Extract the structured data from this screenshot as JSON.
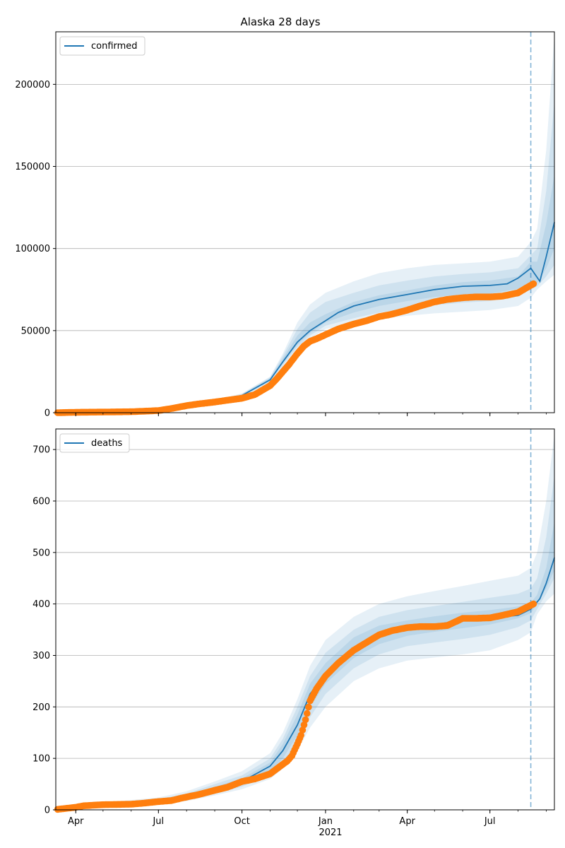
{
  "chart_data": [
    {
      "type": "line",
      "title": "Alaska 28 days",
      "legend": {
        "entries": [
          "confirmed"
        ],
        "placement": "top-left"
      },
      "ylim": [
        0,
        232000
      ],
      "yticks": [
        0,
        50000,
        100000,
        150000,
        200000
      ],
      "ytick_labels": [
        "0",
        "50000",
        "100000",
        "150000",
        "200000"
      ],
      "grid": "horizontal",
      "forecast_start": "2021-08-15",
      "colors": {
        "model": "#1f77b4",
        "observed": "#ff7f0e",
        "band": "#1f77b4"
      },
      "model_series": {
        "name": "confirmed",
        "x": [
          "2020-03-10",
          "2020-06-01",
          "2020-07-01",
          "2020-08-01",
          "2020-09-01",
          "2020-10-01",
          "2020-11-01",
          "2020-11-15",
          "2020-12-01",
          "2020-12-15",
          "2021-01-01",
          "2021-01-15",
          "2021-02-01",
          "2021-03-01",
          "2021-04-01",
          "2021-05-01",
          "2021-06-01",
          "2021-07-01",
          "2021-07-20",
          "2021-08-01",
          "2021-08-15",
          "2021-08-25",
          "2021-09-01",
          "2021-09-10"
        ],
        "y": [
          200,
          700,
          1700,
          4500,
          7000,
          10500,
          20000,
          31000,
          43000,
          50000,
          56000,
          61000,
          65000,
          69000,
          72000,
          75000,
          77000,
          77500,
          78500,
          82000,
          88000,
          80000,
          95000,
          116000
        ]
      },
      "bands": [
        {
          "x": [
            "2020-03-10",
            "2020-07-01",
            "2020-08-01",
            "2020-09-01",
            "2020-10-01",
            "2020-11-01",
            "2020-11-15",
            "2020-12-01",
            "2020-12-15",
            "2021-01-01",
            "2021-02-01",
            "2021-03-01",
            "2021-04-01",
            "2021-05-01",
            "2021-06-01",
            "2021-07-01",
            "2021-08-01",
            "2021-08-15",
            "2021-08-22",
            "2021-09-01",
            "2021-09-10"
          ],
          "lower": [
            150,
            1400,
            4000,
            6300,
            9300,
            18500,
            28000,
            38000,
            45000,
            51000,
            54000,
            57000,
            59000,
            60500,
            61500,
            62500,
            65000,
            70000,
            75000,
            80000,
            84000
          ],
          "upper": [
            250,
            2000,
            5000,
            7700,
            11700,
            22000,
            36000,
            55000,
            66000,
            73000,
            80000,
            85000,
            88000,
            90000,
            91000,
            92000,
            95000,
            104000,
            112000,
            160000,
            230000
          ]
        },
        {
          "x": [
            "2020-03-10",
            "2020-07-01",
            "2020-08-01",
            "2020-09-01",
            "2020-10-01",
            "2020-11-01",
            "2020-11-15",
            "2020-12-01",
            "2020-12-15",
            "2021-01-01",
            "2021-02-01",
            "2021-03-01",
            "2021-04-01",
            "2021-05-01",
            "2021-06-01",
            "2021-07-01",
            "2021-08-01",
            "2021-08-15",
            "2021-08-22",
            "2021-09-01",
            "2021-09-10"
          ],
          "lower": [
            170,
            1500,
            4200,
            6500,
            9600,
            19000,
            29000,
            40000,
            47000,
            53000,
            57500,
            61000,
            63500,
            65500,
            67000,
            68000,
            71000,
            75000,
            77000,
            83000,
            90000
          ],
          "upper": [
            230,
            1900,
            4800,
            7500,
            11400,
            21500,
            34500,
            51000,
            61000,
            67500,
            73000,
            77500,
            80500,
            83000,
            84500,
            85500,
            88000,
            96000,
            100000,
            135000,
            190000
          ]
        },
        {
          "x": [
            "2020-03-10",
            "2020-07-01",
            "2020-08-01",
            "2020-09-01",
            "2020-10-01",
            "2020-11-01",
            "2020-11-15",
            "2020-12-01",
            "2020-12-15",
            "2021-01-01",
            "2021-02-01",
            "2021-03-01",
            "2021-04-01",
            "2021-05-01",
            "2021-06-01",
            "2021-07-01",
            "2021-08-01",
            "2021-08-15",
            "2021-08-22",
            "2021-09-01",
            "2021-09-10"
          ],
          "lower": [
            185,
            1600,
            4350,
            6750,
            10000,
            19500,
            30000,
            41500,
            48500,
            55000,
            61000,
            65000,
            68000,
            70500,
            72000,
            72500,
            75500,
            80000,
            79000,
            88000,
            100000
          ],
          "upper": [
            215,
            1800,
            4650,
            7250,
            11000,
            21000,
            33000,
            47000,
            55000,
            60000,
            67500,
            71500,
            74500,
            77500,
            79500,
            80500,
            83000,
            92000,
            92000,
            115000,
            145000
          ]
        }
      ],
      "observed": {
        "x": [
          "2020-03-12",
          "2020-04-01",
          "2020-05-01",
          "2020-06-01",
          "2020-06-15",
          "2020-07-01",
          "2020-07-15",
          "2020-08-01",
          "2020-08-15",
          "2020-09-01",
          "2020-09-15",
          "2020-10-01",
          "2020-10-15",
          "2020-11-01",
          "2020-11-08",
          "2020-11-15",
          "2020-11-22",
          "2020-12-01",
          "2020-12-08",
          "2020-12-15",
          "2020-12-22",
          "2021-01-01",
          "2021-01-15",
          "2021-02-01",
          "2021-02-15",
          "2021-03-01",
          "2021-03-15",
          "2021-04-01",
          "2021-04-15",
          "2021-05-01",
          "2021-05-15",
          "2021-06-01",
          "2021-06-15",
          "2021-07-01",
          "2021-07-15",
          "2021-08-01",
          "2021-08-10",
          "2021-08-18"
        ],
        "y": [
          0,
          250,
          400,
          600,
          900,
          1300,
          2500,
          4300,
          5400,
          6500,
          7600,
          8800,
          11000,
          16500,
          20500,
          25000,
          29500,
          36000,
          40500,
          43500,
          45000,
          47500,
          51000,
          54000,
          56000,
          58500,
          60000,
          62500,
          65000,
          67500,
          69000,
          70000,
          70500,
          70500,
          71000,
          73000,
          76000,
          78500
        ]
      }
    },
    {
      "type": "line",
      "title": "",
      "legend": {
        "entries": [
          "deaths"
        ],
        "placement": "top-left"
      },
      "ylim": [
        0,
        740
      ],
      "yticks": [
        0,
        100,
        200,
        300,
        400,
        500,
        600,
        700
      ],
      "ytick_labels": [
        "0",
        "100",
        "200",
        "300",
        "400",
        "500",
        "600",
        "700"
      ],
      "grid": "horizontal",
      "forecast_start": "2021-08-15",
      "xticks": [
        "2020-04-01",
        "2020-07-01",
        "2020-10-01",
        "2021-01-01",
        "2021-04-01",
        "2021-07-01"
      ],
      "xtick_labels": [
        "Apr",
        "Jul",
        "Oct",
        "Jan",
        "Apr",
        "Jul"
      ],
      "xtick_year_label": "2021",
      "xlim": [
        "2020-03-10",
        "2021-09-10"
      ],
      "colors": {
        "model": "#1f77b4",
        "observed": "#ff7f0e",
        "band": "#1f77b4"
      },
      "model_series": {
        "name": "deaths",
        "x": [
          "2020-03-10",
          "2020-04-01",
          "2020-05-01",
          "2020-06-01",
          "2020-07-01",
          "2020-08-01",
          "2020-09-01",
          "2020-10-01",
          "2020-11-01",
          "2020-11-15",
          "2020-12-01",
          "2020-12-15",
          "2021-01-01",
          "2021-01-15",
          "2021-02-01",
          "2021-03-01",
          "2021-04-01",
          "2021-05-01",
          "2021-06-01",
          "2021-07-01",
          "2021-08-01",
          "2021-08-15",
          "2021-08-25",
          "2021-09-01",
          "2021-09-10"
        ],
        "y": [
          2,
          6,
          9,
          12,
          16,
          25,
          40,
          55,
          85,
          115,
          165,
          225,
          265,
          290,
          315,
          340,
          352,
          360,
          368,
          373,
          378,
          390,
          410,
          440,
          490
        ]
      },
      "bands": [
        {
          "x": [
            "2020-03-10",
            "2020-05-01",
            "2020-07-01",
            "2020-08-01",
            "2020-09-01",
            "2020-10-01",
            "2020-11-01",
            "2020-11-15",
            "2020-12-01",
            "2020-12-15",
            "2021-01-01",
            "2021-02-01",
            "2021-03-01",
            "2021-04-01",
            "2021-05-01",
            "2021-06-01",
            "2021-07-01",
            "2021-08-01",
            "2021-08-15",
            "2021-08-22",
            "2021-09-01",
            "2021-09-10"
          ],
          "lower": [
            0,
            5,
            10,
            17,
            28,
            40,
            60,
            80,
            115,
            160,
            200,
            250,
            275,
            290,
            296,
            302,
            310,
            330,
            345,
            380,
            405,
            420
          ],
          "upper": [
            5,
            14,
            24,
            36,
            55,
            75,
            110,
            150,
            215,
            280,
            330,
            375,
            400,
            415,
            425,
            435,
            445,
            455,
            470,
            500,
            600,
            730
          ]
        },
        {
          "x": [
            "2020-03-10",
            "2020-05-01",
            "2020-07-01",
            "2020-08-01",
            "2020-09-01",
            "2020-10-01",
            "2020-11-01",
            "2020-11-15",
            "2020-12-01",
            "2020-12-15",
            "2021-01-01",
            "2021-02-01",
            "2021-03-01",
            "2021-04-01",
            "2021-05-01",
            "2021-06-01",
            "2021-07-01",
            "2021-08-01",
            "2021-08-15",
            "2021-08-22",
            "2021-09-01",
            "2021-09-10"
          ],
          "lower": [
            1,
            6,
            12,
            19,
            31,
            45,
            67,
            90,
            130,
            180,
            225,
            275,
            302,
            318,
            325,
            332,
            340,
            355,
            368,
            390,
            420,
            450
          ],
          "upper": [
            4,
            12,
            21,
            32,
            50,
            67,
            100,
            138,
            200,
            260,
            305,
            350,
            375,
            388,
            396,
            404,
            412,
            420,
            430,
            450,
            530,
            650
          ]
        },
        {
          "x": [
            "2020-03-10",
            "2020-05-01",
            "2020-07-01",
            "2020-08-01",
            "2020-09-01",
            "2020-10-01",
            "2020-11-01",
            "2020-11-15",
            "2020-12-01",
            "2020-12-15",
            "2021-01-01",
            "2021-02-01",
            "2021-03-01",
            "2021-04-01",
            "2021-05-01",
            "2021-06-01",
            "2021-07-01",
            "2021-08-01",
            "2021-08-15",
            "2021-08-22",
            "2021-09-01",
            "2021-09-10"
          ],
          "lower": [
            1,
            7,
            14,
            21,
            35,
            50,
            75,
            100,
            145,
            200,
            245,
            295,
            322,
            338,
            346,
            353,
            360,
            372,
            382,
            400,
            430,
            465
          ],
          "upper": [
            3,
            11,
            19,
            29,
            45,
            61,
            92,
            128,
            185,
            245,
            285,
            335,
            358,
            368,
            376,
            383,
            388,
            395,
            402,
            418,
            470,
            560
          ]
        }
      ],
      "observed": {
        "x": [
          "2020-03-12",
          "2020-04-01",
          "2020-04-10",
          "2020-05-01",
          "2020-06-01",
          "2020-06-15",
          "2020-07-01",
          "2020-07-15",
          "2020-08-01",
          "2020-08-15",
          "2020-09-01",
          "2020-09-15",
          "2020-10-01",
          "2020-10-15",
          "2020-11-01",
          "2020-11-10",
          "2020-11-20",
          "2020-11-25",
          "2020-12-01",
          "2020-12-05",
          "2020-12-10",
          "2020-12-15",
          "2020-12-22",
          "2021-01-01",
          "2021-01-15",
          "2021-02-01",
          "2021-02-15",
          "2021-03-01",
          "2021-03-15",
          "2021-04-01",
          "2021-04-15",
          "2021-05-01",
          "2021-05-15",
          "2021-06-01",
          "2021-06-15",
          "2021-07-01",
          "2021-07-15",
          "2021-08-01",
          "2021-08-10",
          "2021-08-18"
        ],
        "y": [
          1,
          5,
          8,
          10,
          11,
          13,
          16,
          18,
          25,
          30,
          38,
          44,
          55,
          60,
          70,
          82,
          95,
          105,
          128,
          145,
          175,
          212,
          235,
          260,
          285,
          310,
          325,
          340,
          348,
          354,
          356,
          356,
          358,
          372,
          372,
          373,
          378,
          385,
          393,
          400
        ]
      }
    }
  ]
}
